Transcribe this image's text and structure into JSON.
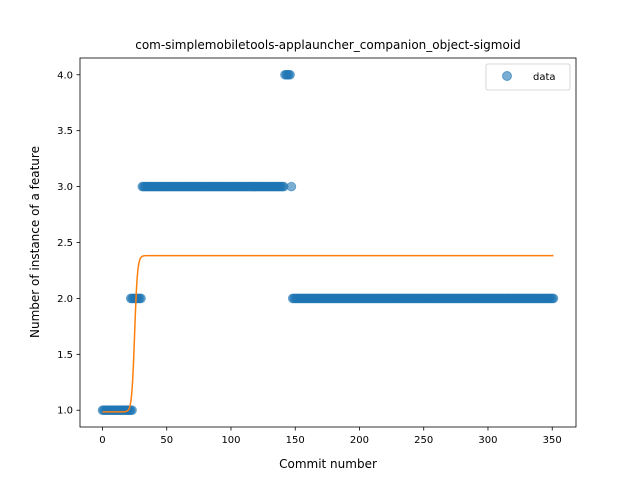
{
  "chart_data": {
    "type": "scatter",
    "title": "com-simplemobiletools-applauncher_companion_object-sigmoid",
    "xlabel": "Commit number",
    "ylabel": "Number of instance of a feature",
    "xlim": [
      -17.5,
      368.5
    ],
    "ylim": [
      0.85,
      4.15
    ],
    "xticks": [
      0,
      50,
      100,
      150,
      200,
      250,
      300,
      350
    ],
    "yticks": [
      1.0,
      1.5,
      2.0,
      2.5,
      3.0,
      3.5,
      4.0
    ],
    "xtick_labels": [
      "0",
      "50",
      "100",
      "150",
      "200",
      "250",
      "300",
      "350"
    ],
    "ytick_labels": [
      "1.0",
      "1.5",
      "2.0",
      "2.5",
      "3.0",
      "3.5",
      "4.0"
    ],
    "legend": {
      "position": "top-right",
      "entries": [
        "data"
      ]
    },
    "colors": {
      "scatter": "#1f77b4",
      "fit": "#ff7f0e"
    },
    "series": [
      {
        "name": "data",
        "kind": "scatter",
        "segments": [
          {
            "x_from": 0,
            "x_to": 23,
            "y": 1
          },
          {
            "x_from": 22,
            "x_to": 30,
            "y": 2
          },
          {
            "x_from": 31,
            "x_to": 141,
            "y": 3
          },
          {
            "x_from": 142,
            "x_to": 146,
            "y": 4
          },
          {
            "x_from": 147,
            "x_to": 147,
            "y": 3
          },
          {
            "x_from": 148,
            "x_to": 351,
            "y": 2
          }
        ]
      },
      {
        "kind": "sigmoid-fit",
        "x_range": [
          0,
          351
        ],
        "lower": 0.985,
        "upper": 2.383,
        "midpoint": 25,
        "steepness": 0.9
      }
    ]
  }
}
